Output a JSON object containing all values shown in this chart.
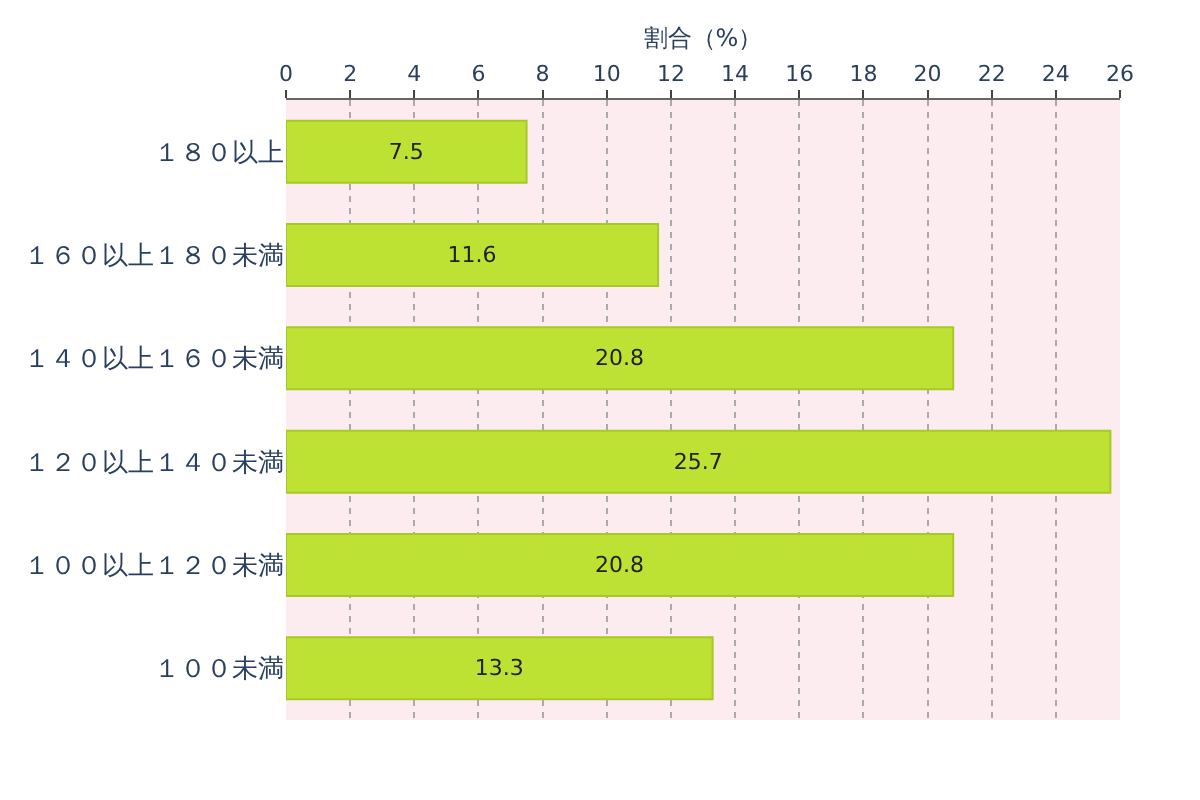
{
  "chart_data": {
    "type": "bar",
    "orientation": "horizontal",
    "xlabel": "割合（%）",
    "categories": [
      "１８０以上",
      "１６０以上１８０未満",
      "１４０以上１６０未満",
      "１２０以上１４０未満",
      "１００以上１２０未満",
      "１００未満"
    ],
    "values": [
      7.5,
      11.6,
      20.8,
      25.7,
      20.8,
      13.3
    ],
    "color": "#bde234",
    "xlim": [
      0,
      26
    ],
    "xticks": [
      0,
      2,
      4,
      6,
      8,
      10,
      12,
      14,
      16,
      18,
      20,
      22,
      24,
      26
    ],
    "grid": "x",
    "data_labels": true
  }
}
